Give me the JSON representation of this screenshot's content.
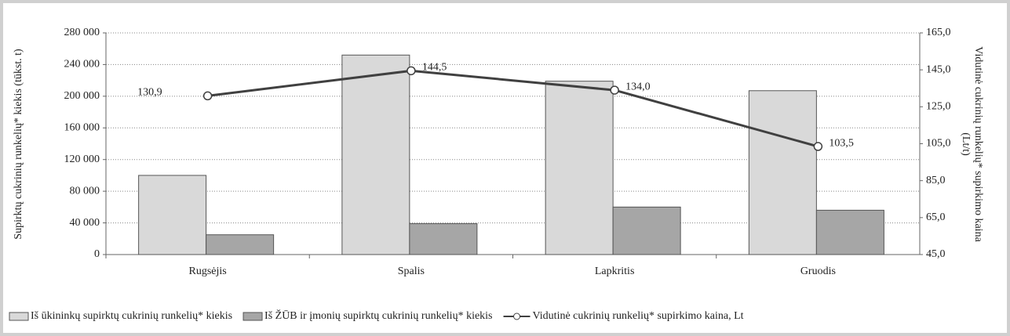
{
  "chart_data": {
    "type": "bar-line",
    "ylabel": "Supirktų cukrinių runkelių* kiekis (tūkst. t)",
    "y2label": [
      "Vidutinė cukrinių runkelių* supirkimo kaina",
      "(Lt/t)"
    ],
    "categories": [
      "Rugsėjis",
      "Spalis",
      "Lapkritis",
      "Gruodis"
    ],
    "series": [
      {
        "name": "Iš ūkininkų supirktų cukrinių runkelių* kiekis",
        "type": "bar",
        "color": "#d9d9d9",
        "values": [
          100000,
          252000,
          219000,
          207000
        ]
      },
      {
        "name": "Iš ŽŪB ir įmonių supirktų cukrinių runkelių* kiekis",
        "type": "bar",
        "color": "#a6a6a6",
        "values": [
          25000,
          39000,
          60000,
          56000
        ]
      },
      {
        "name": "Vidutinė cukrinių runkelių* supirkimo kaina, Lt",
        "type": "line",
        "axis": "y2",
        "color": "#404040",
        "values": [
          130.9,
          144.5,
          134.0,
          103.5
        ],
        "value_labels": [
          "130,9",
          "144,5",
          "134,0",
          "103,5"
        ]
      }
    ],
    "ylim": [
      0,
      280000
    ],
    "yticks": [
      0,
      {
        "value": 40000,
        "label": "40 000"
      },
      {
        "value": 80000,
        "label": "80 000"
      },
      {
        "value": 120000,
        "label": "120 000"
      },
      {
        "value": 160000,
        "label": "160 000"
      },
      {
        "value": 200000,
        "label": "200 000"
      },
      {
        "value": 240000,
        "label": "240 000"
      },
      {
        "value": 280000,
        "label": "280 000"
      }
    ],
    "y2lim": [
      45,
      165
    ],
    "y2ticks": [
      {
        "value": 45,
        "label": "45,0"
      },
      {
        "value": 65,
        "label": "65,0"
      },
      {
        "value": 85,
        "label": "85,0"
      },
      {
        "value": 105,
        "label": "105,0"
      },
      {
        "value": 125,
        "label": "125,0"
      },
      {
        "value": 145,
        "label": "145,0"
      },
      {
        "value": 165,
        "label": "165,0"
      }
    ],
    "grid": true,
    "legend": "bottom"
  }
}
